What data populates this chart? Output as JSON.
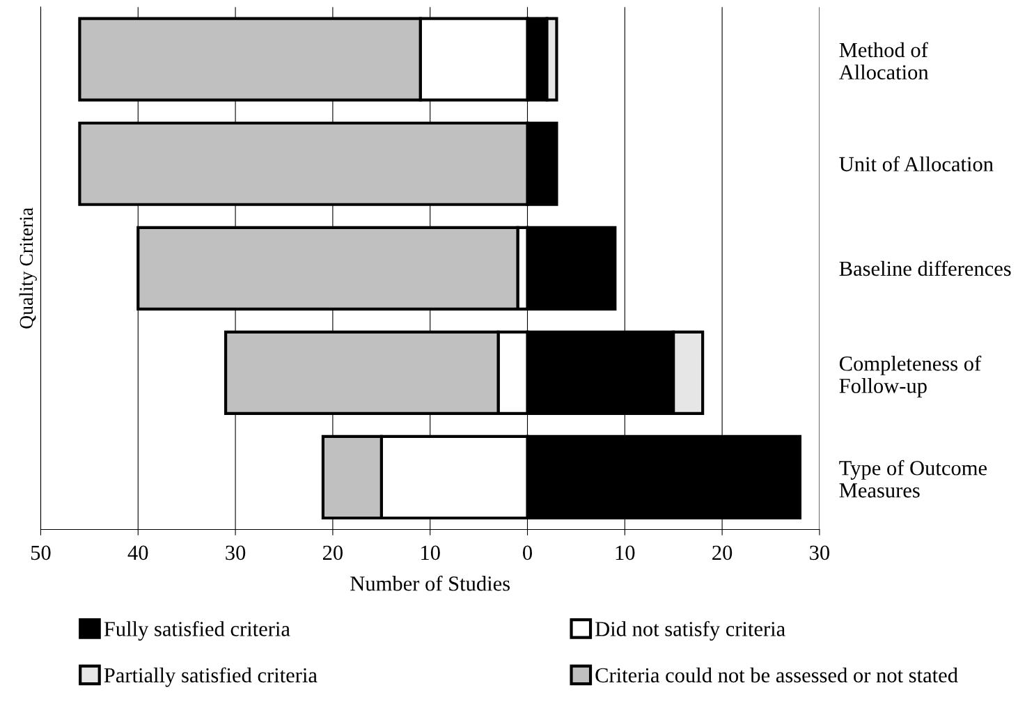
{
  "chart_data": {
    "type": "bar",
    "orientation": "horizontal",
    "stacked": true,
    "xlabel": "Number of Studies",
    "ylabel": "Quality Criteria",
    "categories": [
      "Method of\nAllocation",
      "Unit of Allocation",
      "Baseline differences",
      "Completeness of\nFollow-up",
      "Type of Outcome\nMeasures"
    ],
    "series": [
      {
        "name": "Fully satisfied criteria",
        "color": "#000000",
        "values": [
          2,
          3,
          9,
          15,
          28
        ]
      },
      {
        "name": "Partially satisfied criteria",
        "color": "#e6e6e6",
        "values": [
          1,
          null,
          null,
          3,
          null
        ]
      },
      {
        "name": "Did not satisfy criteria",
        "color": "#ffffff",
        "values": [
          -11,
          null,
          -1,
          -3,
          -15
        ]
      },
      {
        "name": "Criteria could not be assessed or not stated",
        "color": "#c0c0c0",
        "values": [
          -35,
          -46,
          -39,
          -28,
          -6
        ]
      }
    ],
    "xlim": [
      -50,
      30
    ],
    "xticks": [
      {
        "value": -50,
        "label": "50"
      },
      {
        "value": -40,
        "label": "40"
      },
      {
        "value": -30,
        "label": "30"
      },
      {
        "value": -20,
        "label": "20"
      },
      {
        "value": -10,
        "label": "10"
      },
      0,
      10,
      20,
      30
    ],
    "grid": "x",
    "legend": "bottom"
  }
}
